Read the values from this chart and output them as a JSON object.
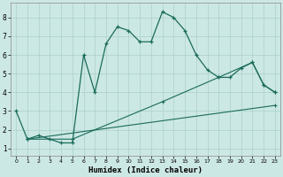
{
  "xlabel": "Humidex (Indice chaleur)",
  "bg_color": "#cce8e4",
  "grid_color": "#aacfcb",
  "line_color": "#1a6b5a",
  "xlim_min": -0.5,
  "xlim_max": 23.5,
  "ylim_min": 0.6,
  "ylim_max": 8.8,
  "xticks": [
    0,
    1,
    2,
    3,
    4,
    5,
    6,
    7,
    8,
    9,
    10,
    11,
    12,
    13,
    14,
    15,
    16,
    17,
    18,
    19,
    20,
    21,
    22,
    23
  ],
  "yticks": [
    1,
    2,
    3,
    4,
    5,
    6,
    7,
    8
  ],
  "line1_x": [
    0,
    1,
    2,
    3,
    4,
    5,
    6,
    7,
    8,
    9,
    10,
    11,
    12,
    13,
    14,
    15,
    16,
    17,
    18,
    19,
    20,
    21,
    22,
    23
  ],
  "line1_y": [
    3.0,
    1.5,
    1.7,
    1.5,
    1.3,
    1.3,
    6.0,
    4.0,
    6.6,
    7.5,
    7.3,
    6.7,
    6.7,
    8.3,
    8.0,
    7.3,
    6.0,
    5.2,
    4.8,
    4.8,
    5.3,
    5.6,
    4.4,
    4.0
  ],
  "line2_x": [
    1,
    5,
    13,
    18,
    21,
    22,
    23
  ],
  "line2_y": [
    1.5,
    1.5,
    3.5,
    4.8,
    5.6,
    4.4,
    4.0
  ],
  "line3_x": [
    1,
    23
  ],
  "line3_y": [
    1.5,
    3.3
  ]
}
